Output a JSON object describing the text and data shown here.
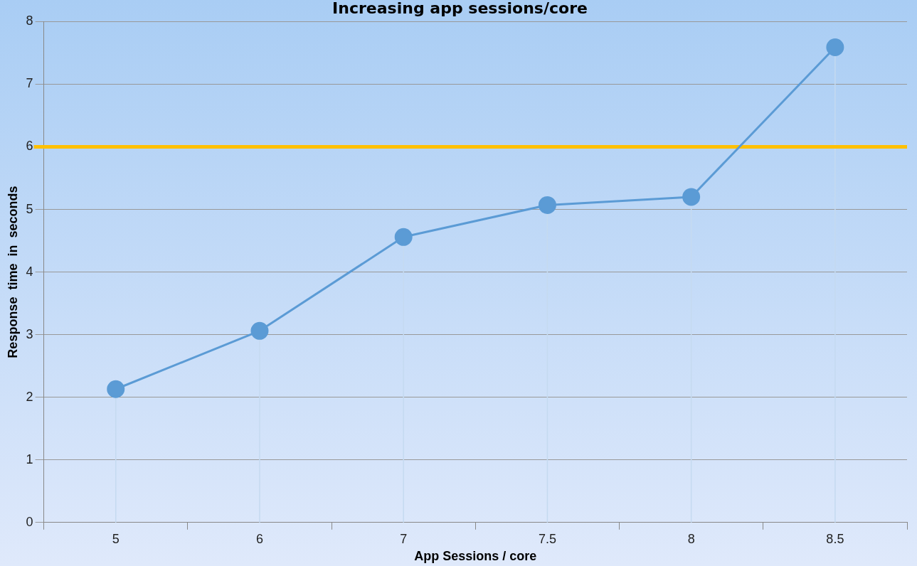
{
  "chart_data": {
    "type": "line",
    "title": "Increasing app sessions/core",
    "xlabel": "App Sessions / core",
    "ylabel": "Response  time  in  seconds",
    "categories": [
      "5",
      "6",
      "7",
      "7.5",
      "8",
      "8.5"
    ],
    "series": [
      {
        "color": "#5b9bd5",
        "values": [
          2.13,
          3.06,
          4.56,
          5.07,
          5.2,
          7.59
        ],
        "errors": [
          [
            2.13,
            0
          ],
          [
            3.06,
            0
          ],
          [
            4.56,
            0
          ],
          [
            5.07,
            0
          ],
          [
            5.2,
            0
          ],
          [
            7.59,
            0
          ]
        ]
      }
    ],
    "ylim": [
      0,
      8
    ],
    "yticks": [
      0,
      1,
      2,
      3,
      4,
      5,
      6,
      7,
      8
    ],
    "ref_lines": [
      {
        "axis": "y",
        "value": 6,
        "color": "#ffc000"
      }
    ],
    "grid": "y",
    "legend": false,
    "marker": "circle",
    "line_style": "solid"
  }
}
